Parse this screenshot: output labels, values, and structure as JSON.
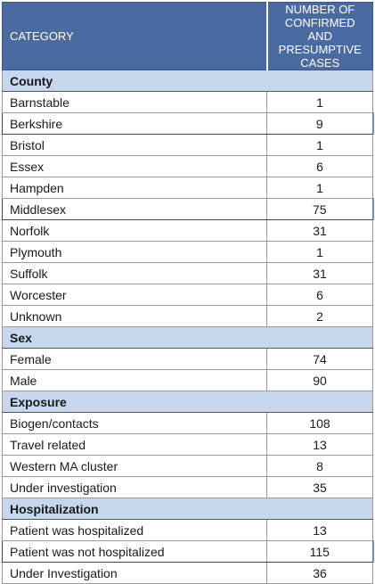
{
  "header": {
    "category": "CATEGORY",
    "cases_line1": "NUMBER OF CONFIRMED",
    "cases_line2": "AND PRESUMPTIVE CASES"
  },
  "sections": [
    {
      "title": "County",
      "rows": [
        {
          "label": "Barnstable",
          "value": "1"
        },
        {
          "label": "Berkshire",
          "value": "9"
        },
        {
          "label": "Bristol",
          "value": "1"
        },
        {
          "label": "Essex",
          "value": "6"
        },
        {
          "label": "Hampden",
          "value": "1"
        },
        {
          "label": "Middlesex",
          "value": "75"
        },
        {
          "label": "Norfolk",
          "value": "31"
        },
        {
          "label": "Plymouth",
          "value": "1"
        },
        {
          "label": "Suffolk",
          "value": "31"
        },
        {
          "label": "Worcester",
          "value": "6"
        },
        {
          "label": "Unknown",
          "value": "2"
        }
      ]
    },
    {
      "title": "Sex",
      "rows": [
        {
          "label": "Female",
          "value": "74"
        },
        {
          "label": "Male",
          "value": "90"
        }
      ]
    },
    {
      "title": "Exposure",
      "rows": [
        {
          "label": "Biogen/contacts",
          "value": "108"
        },
        {
          "label": "Travel related",
          "value": "13"
        },
        {
          "label": "Western MA cluster",
          "value": "8"
        },
        {
          "label": "Under investigation",
          "value": "35"
        }
      ]
    },
    {
      "title": "Hospitalization",
      "rows": [
        {
          "label": "Patient was hospitalized",
          "value": "13"
        },
        {
          "label": "Patient was not hospitalized",
          "value": "115"
        },
        {
          "label": "Under Investigation",
          "value": "36"
        }
      ]
    }
  ]
}
